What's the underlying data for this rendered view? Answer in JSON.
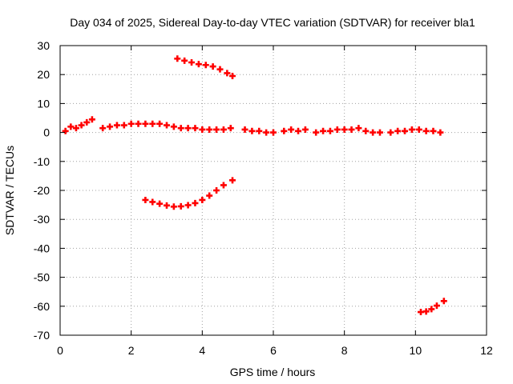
{
  "chart_data": {
    "type": "scatter",
    "title": "Day 034 of 2025, Sidereal Day-to-day VTEC variation (SDTVAR) for receiver bla1",
    "xlabel": "GPS time / hours",
    "ylabel": "SDTVAR / TECUs",
    "xlim": [
      0,
      12
    ],
    "ylim": [
      -70,
      30
    ],
    "xticks": [
      0,
      2,
      4,
      6,
      8,
      10,
      12
    ],
    "yticks": [
      -70,
      -60,
      -50,
      -40,
      -30,
      -20,
      -10,
      0,
      10,
      20,
      30
    ],
    "grid": true,
    "marker": "plus",
    "color": "#ff0000",
    "series": [
      {
        "points": [
          [
            0.15,
            0.5
          ],
          [
            0.3,
            2.0
          ],
          [
            0.45,
            1.5
          ],
          [
            0.6,
            2.5
          ],
          [
            0.75,
            3.5
          ],
          [
            0.9,
            4.5
          ],
          [
            1.2,
            1.5
          ],
          [
            1.4,
            2.0
          ],
          [
            1.6,
            2.5
          ],
          [
            1.8,
            2.5
          ],
          [
            2.0,
            3.0
          ],
          [
            2.2,
            3.0
          ],
          [
            2.4,
            3.0
          ],
          [
            2.6,
            3.0
          ],
          [
            2.8,
            3.0
          ],
          [
            3.0,
            2.5
          ],
          [
            3.2,
            2.0
          ],
          [
            3.4,
            1.5
          ],
          [
            3.6,
            1.5
          ],
          [
            3.8,
            1.5
          ],
          [
            4.0,
            1.0
          ],
          [
            4.2,
            1.0
          ],
          [
            4.4,
            1.0
          ],
          [
            4.6,
            1.0
          ],
          [
            4.8,
            1.5
          ],
          [
            5.2,
            1.0
          ],
          [
            5.4,
            0.5
          ],
          [
            5.6,
            0.5
          ],
          [
            5.8,
            0.0
          ],
          [
            6.0,
            0.0
          ],
          [
            6.3,
            0.5
          ],
          [
            6.5,
            1.0
          ],
          [
            6.7,
            0.5
          ],
          [
            6.9,
            1.0
          ],
          [
            7.2,
            0.0
          ],
          [
            7.4,
            0.5
          ],
          [
            7.6,
            0.5
          ],
          [
            7.8,
            1.0
          ],
          [
            8.0,
            1.0
          ],
          [
            8.2,
            1.0
          ],
          [
            8.4,
            1.5
          ],
          [
            8.6,
            0.5
          ],
          [
            8.8,
            0.0
          ],
          [
            9.0,
            0.0
          ],
          [
            9.3,
            0.0
          ],
          [
            9.5,
            0.5
          ],
          [
            9.7,
            0.5
          ],
          [
            9.9,
            1.0
          ],
          [
            10.1,
            1.0
          ],
          [
            10.3,
            0.5
          ],
          [
            10.5,
            0.5
          ],
          [
            10.7,
            0.0
          ]
        ]
      },
      {
        "points": [
          [
            3.3,
            25.5
          ],
          [
            3.5,
            24.8
          ],
          [
            3.7,
            24.2
          ],
          [
            3.9,
            23.6
          ],
          [
            4.1,
            23.3
          ],
          [
            4.3,
            22.8
          ],
          [
            4.5,
            21.8
          ],
          [
            4.7,
            20.5
          ],
          [
            4.85,
            19.5
          ]
        ]
      },
      {
        "points": [
          [
            2.4,
            -23.3
          ],
          [
            2.6,
            -24.0
          ],
          [
            2.8,
            -24.6
          ],
          [
            3.0,
            -25.2
          ],
          [
            3.2,
            -25.6
          ],
          [
            3.4,
            -25.5
          ],
          [
            3.6,
            -25.1
          ],
          [
            3.8,
            -24.4
          ],
          [
            4.0,
            -23.3
          ],
          [
            4.2,
            -21.8
          ],
          [
            4.4,
            -20.0
          ],
          [
            4.6,
            -18.2
          ],
          [
            4.85,
            -16.5
          ]
        ]
      },
      {
        "points": [
          [
            10.15,
            -62.0
          ],
          [
            10.3,
            -61.8
          ],
          [
            10.45,
            -61.0
          ],
          [
            10.6,
            -59.8
          ],
          [
            10.8,
            -58.2
          ]
        ]
      }
    ]
  }
}
